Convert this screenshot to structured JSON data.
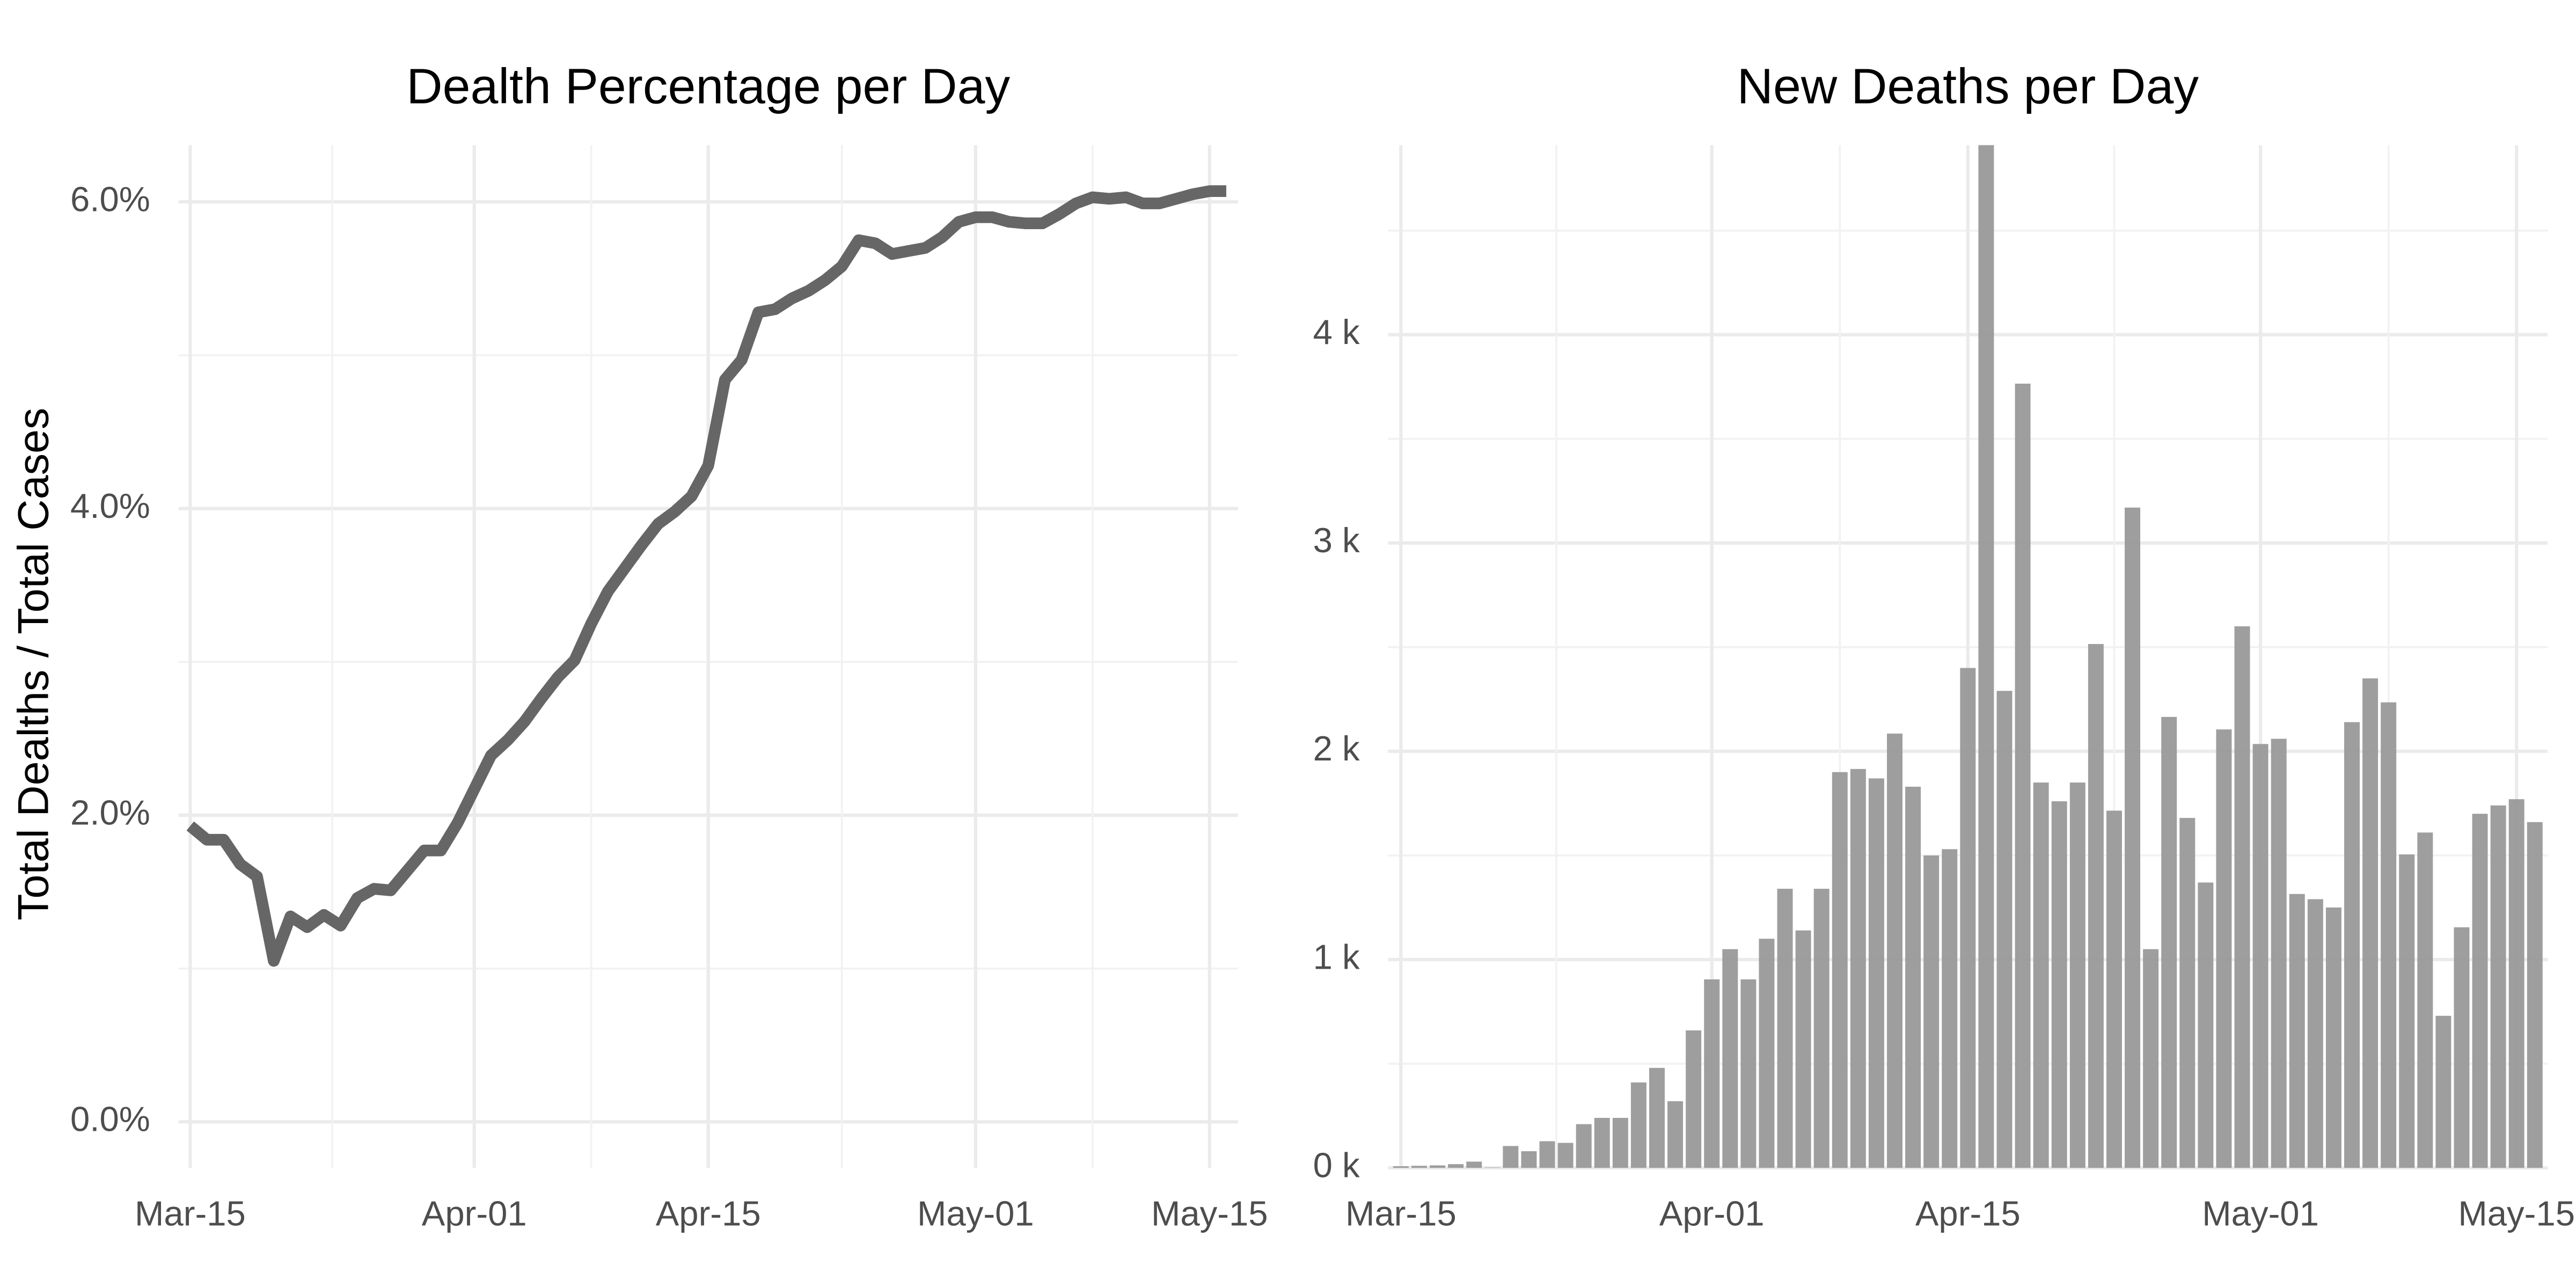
{
  "chart_data": [
    {
      "type": "line",
      "title": "Dealth Percentage per Day",
      "y_label": "Total Dealths / Total Cases",
      "x": [
        "Mar-15",
        "Mar-16",
        "Mar-17",
        "Mar-18",
        "Mar-19",
        "Mar-20",
        "Mar-21",
        "Mar-22",
        "Mar-23",
        "Mar-24",
        "Mar-25",
        "Mar-26",
        "Mar-27",
        "Mar-28",
        "Mar-29",
        "Mar-30",
        "Mar-31",
        "Apr-01",
        "Apr-02",
        "Apr-03",
        "Apr-04",
        "Apr-05",
        "Apr-06",
        "Apr-07",
        "Apr-08",
        "Apr-09",
        "Apr-10",
        "Apr-11",
        "Apr-12",
        "Apr-13",
        "Apr-14",
        "Apr-15",
        "Apr-16",
        "Apr-17",
        "Apr-18",
        "Apr-19",
        "Apr-20",
        "Apr-21",
        "Apr-22",
        "Apr-23",
        "Apr-24",
        "Apr-25",
        "Apr-26",
        "Apr-27",
        "Apr-28",
        "Apr-29",
        "Apr-30",
        "May-01",
        "May-02",
        "May-03",
        "May-04",
        "May-05",
        "May-06",
        "May-07",
        "May-08",
        "May-09",
        "May-10",
        "May-11",
        "May-12",
        "May-13",
        "May-14",
        "May-15",
        "May-16"
      ],
      "values": [
        1.93,
        1.84,
        1.84,
        1.68,
        1.6,
        1.05,
        1.34,
        1.27,
        1.35,
        1.28,
        1.46,
        1.52,
        1.51,
        1.64,
        1.77,
        1.77,
        1.95,
        2.17,
        2.39,
        2.49,
        2.61,
        2.76,
        2.9,
        3.01,
        3.25,
        3.46,
        3.61,
        3.76,
        3.9,
        3.98,
        4.08,
        4.28,
        4.84,
        4.97,
        5.28,
        5.3,
        5.37,
        5.42,
        5.49,
        5.58,
        5.75,
        5.73,
        5.66,
        5.68,
        5.7,
        5.77,
        5.87,
        5.9,
        5.9,
        5.87,
        5.86,
        5.86,
        5.92,
        5.99,
        6.03,
        6.02,
        6.03,
        5.99,
        5.99,
        6.02,
        6.05,
        6.07,
        6.07
      ],
      "color": "#666666",
      "xticks": [
        "Mar-15",
        "Apr-01",
        "Apr-15",
        "May-01",
        "May-15"
      ],
      "ylim": [
        -0.3,
        6.37
      ],
      "yticks": [
        {
          "value": 0,
          "label": "0.0%"
        },
        {
          "value": 2,
          "label": "2.0%"
        },
        {
          "value": 4,
          "label": "4.0%"
        },
        {
          "value": 6,
          "label": "6.0%"
        }
      ],
      "grid": true
    },
    {
      "type": "bar",
      "title": "New Deaths per Day",
      "x": [
        "Mar-15",
        "Mar-16",
        "Mar-17",
        "Mar-18",
        "Mar-19",
        "Mar-20",
        "Mar-21",
        "Mar-22",
        "Mar-23",
        "Mar-24",
        "Mar-25",
        "Mar-26",
        "Mar-27",
        "Mar-28",
        "Mar-29",
        "Mar-30",
        "Mar-31",
        "Apr-01",
        "Apr-02",
        "Apr-03",
        "Apr-04",
        "Apr-05",
        "Apr-06",
        "Apr-07",
        "Apr-08",
        "Apr-09",
        "Apr-10",
        "Apr-11",
        "Apr-12",
        "Apr-13",
        "Apr-14",
        "Apr-15",
        "Apr-16",
        "Apr-17",
        "Apr-18",
        "Apr-19",
        "Apr-20",
        "Apr-21",
        "Apr-22",
        "Apr-23",
        "Apr-24",
        "Apr-25",
        "Apr-26",
        "Apr-27",
        "Apr-28",
        "Apr-29",
        "Apr-30",
        "May-01",
        "May-02",
        "May-03",
        "May-04",
        "May-05",
        "May-06",
        "May-07",
        "May-08",
        "May-09",
        "May-10",
        "May-11",
        "May-12",
        "May-13",
        "May-14",
        "May-15",
        "May-16"
      ],
      "values": [
        8,
        10,
        12,
        18,
        30,
        2,
        105,
        80,
        128,
        120,
        210,
        240,
        240,
        410,
        480,
        320,
        660,
        905,
        1050,
        905,
        1100,
        1340,
        1140,
        1340,
        1900,
        1915,
        1870,
        2085,
        1830,
        1500,
        1530,
        2400,
        4910,
        2290,
        3765,
        1850,
        1760,
        1850,
        2515,
        1715,
        3170,
        1050,
        2165,
        1680,
        1370,
        2105,
        2600,
        2035,
        2060,
        1315,
        1290,
        1250,
        2140,
        2350,
        2235,
        1505,
        1610,
        730,
        1155,
        1700,
        1740,
        1770,
        1660
      ],
      "color": "#999999",
      "xticks": [
        "Mar-15",
        "Apr-01",
        "Apr-15",
        "May-01",
        "May-15"
      ],
      "ylim": [
        0,
        4910
      ],
      "yticks": [
        {
          "value": 0,
          "label": "0 k"
        },
        {
          "value": 1000,
          "label": "1 k"
        },
        {
          "value": 2000,
          "label": "2 k"
        },
        {
          "value": 3000,
          "label": "3 k"
        },
        {
          "value": 4000,
          "label": "4 k"
        }
      ],
      "grid": true
    }
  ]
}
